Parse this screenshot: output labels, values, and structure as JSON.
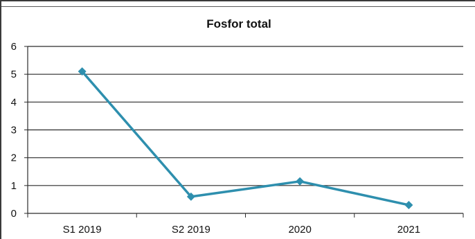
{
  "chart_data": {
    "type": "line",
    "title": "Fosfor total",
    "categories": [
      "S1 2019",
      "S2 2019",
      "2020",
      "2021"
    ],
    "series": [
      {
        "values": [
          5.1,
          0.6,
          1.15,
          0.3
        ],
        "color": "#2e8fae"
      }
    ],
    "ylim": [
      0,
      6
    ],
    "yticks": [
      "0",
      "1",
      "2",
      "3",
      "4",
      "5",
      "6"
    ],
    "grid": true,
    "legend": "none",
    "marker": "diamond"
  }
}
